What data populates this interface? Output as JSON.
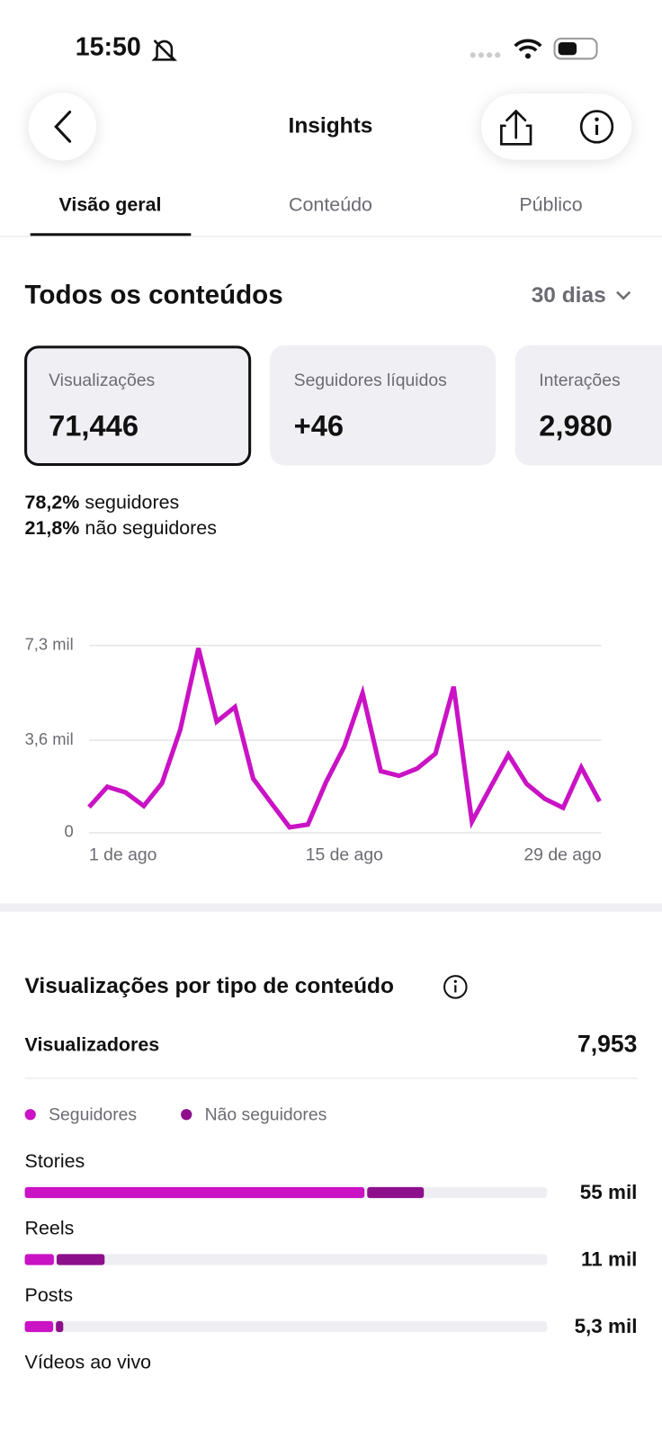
{
  "status_bar": {
    "time": "15:50"
  },
  "header": {
    "title": "Insights"
  },
  "tabs": [
    "Visão geral",
    "Conteúdo",
    "Público"
  ],
  "section": {
    "title": "Todos os conteúdos",
    "period": "30 dias"
  },
  "metrics": [
    {
      "label": "Visualizações",
      "value": "71,446"
    },
    {
      "label": "Seguidores líquidos",
      "value": "+46"
    },
    {
      "label": "Interações",
      "value": "2,980"
    }
  ],
  "audience": [
    {
      "percent": "78,2%",
      "label": "seguidores"
    },
    {
      "percent": "21,8%",
      "label": "não seguidores"
    }
  ],
  "chart_data": [
    {
      "type": "line",
      "color": "#c913c4",
      "categories": [
        "1 de ago",
        null,
        null,
        null,
        null,
        null,
        null,
        null,
        null,
        null,
        null,
        null,
        null,
        null,
        "15 de ago",
        null,
        null,
        null,
        null,
        null,
        null,
        null,
        null,
        null,
        null,
        null,
        null,
        null,
        "29 de ago"
      ],
      "values": [
        1000,
        1790,
        1570,
        1040,
        1930,
        4010,
        7190,
        4330,
        4900,
        2110,
        1150,
        210,
        320,
        1970,
        3360,
        5440,
        2400,
        2220,
        2500,
        3080,
        5690,
        430,
        1750,
        3040,
        1900,
        1320,
        970,
        2540,
        1220
      ],
      "ylim": [
        0,
        7300
      ],
      "yticks": [
        0,
        {
          "value": 3600,
          "label": "3,6 mil"
        },
        {
          "value": 7300,
          "label": "7,3 mil"
        }
      ],
      "grid": true
    },
    {
      "type": "hbar",
      "categories": [
        "Stories",
        "Reels",
        "Posts",
        "Vídeos ao vivo"
      ],
      "series": [
        {
          "name": "Seguidores",
          "color": "#c913c4",
          "values": [
            47,
            4.2,
            4.1,
            null
          ]
        },
        {
          "name": "Não seguidores",
          "color": "#8e0f8c",
          "values": [
            8,
            6.8,
            1.2,
            null
          ]
        }
      ],
      "xlim": [
        0,
        72
      ],
      "totals": [
        55,
        11,
        5.3,
        null
      ],
      "total_labels": [
        "55 mil",
        "11 mil",
        "5,3 mil",
        null
      ]
    }
  ],
  "breakdown": {
    "title": "Visualizações por tipo de conteúdo",
    "viewers_label": "Visualizadores",
    "viewers_value": "7,953"
  }
}
